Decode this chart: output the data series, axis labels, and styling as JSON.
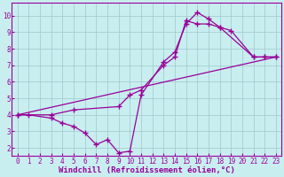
{
  "xlabel": "Windchill (Refroidissement éolien,°C)",
  "bg_color": "#c8eef0",
  "grid_color": "#9ec8ca",
  "line_color": "#990099",
  "xlim": [
    -0.5,
    23.5
  ],
  "ylim": [
    1.5,
    10.8
  ],
  "xticks": [
    0,
    1,
    2,
    3,
    4,
    5,
    6,
    7,
    8,
    9,
    10,
    11,
    12,
    13,
    14,
    15,
    16,
    17,
    18,
    19,
    20,
    21,
    22,
    23
  ],
  "yticks": [
    2,
    3,
    4,
    5,
    6,
    7,
    8,
    9,
    10
  ],
  "line1_x": [
    0,
    1,
    3,
    4,
    5,
    6,
    7,
    8,
    9,
    10,
    11,
    13,
    14,
    15,
    16,
    17,
    18,
    19,
    21,
    22,
    23
  ],
  "line1_y": [
    4.0,
    4.0,
    3.8,
    3.5,
    3.3,
    2.9,
    2.2,
    2.5,
    1.7,
    1.8,
    5.2,
    7.2,
    7.8,
    9.5,
    10.2,
    9.8,
    9.3,
    9.1,
    7.5,
    7.5,
    7.5
  ],
  "line2_x": [
    0,
    3,
    5,
    9,
    10,
    11,
    13,
    14,
    15,
    16,
    17,
    18,
    21,
    22,
    23
  ],
  "line2_y": [
    4.0,
    4.0,
    4.3,
    4.5,
    5.2,
    5.5,
    7.0,
    7.5,
    9.7,
    9.5,
    9.5,
    9.3,
    7.5,
    7.5,
    7.5
  ],
  "line3_x": [
    0,
    23
  ],
  "line3_y": [
    4.0,
    7.5
  ],
  "marker": "+",
  "marker_size": 5,
  "linewidth": 0.9,
  "tick_fontsize": 5.5,
  "xlabel_fontsize": 6.5
}
